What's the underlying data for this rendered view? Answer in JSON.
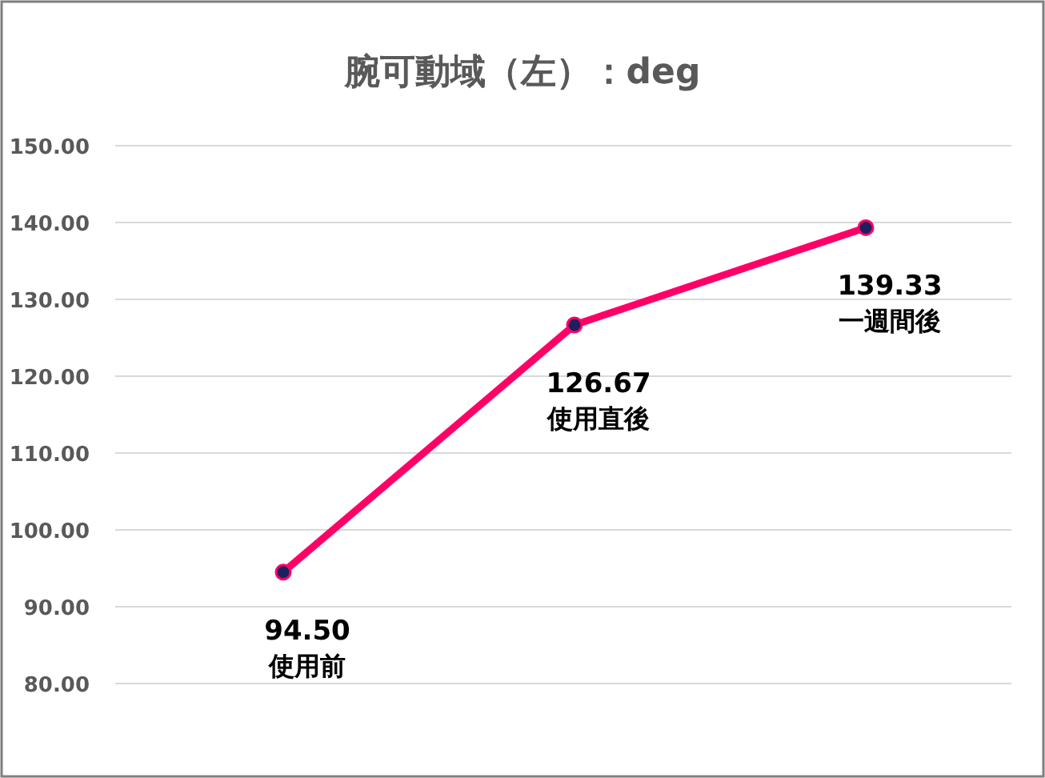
{
  "chart_data": {
    "type": "line",
    "title": "腕可動域（左）：deg",
    "categories": [
      "使用前",
      "使用直後",
      "一週間後"
    ],
    "values": [
      94.5,
      126.67,
      139.33
    ],
    "value_labels": [
      "94.50",
      "126.67",
      "139.33"
    ],
    "color": "#ff0066",
    "marker": "circle",
    "line_style": "solid",
    "ylim": [
      80,
      150
    ],
    "yticks": [
      {
        "value": 80,
        "label": "80.00"
      },
      {
        "value": 90,
        "label": "90.00"
      },
      {
        "value": 100,
        "label": "100.00"
      },
      {
        "value": 110,
        "label": "110.00"
      },
      {
        "value": 120,
        "label": "120.00"
      },
      {
        "value": 130,
        "label": "130.00"
      },
      {
        "value": 140,
        "label": "140.00"
      },
      {
        "value": 150,
        "label": "150.00"
      }
    ],
    "grid": "y"
  }
}
